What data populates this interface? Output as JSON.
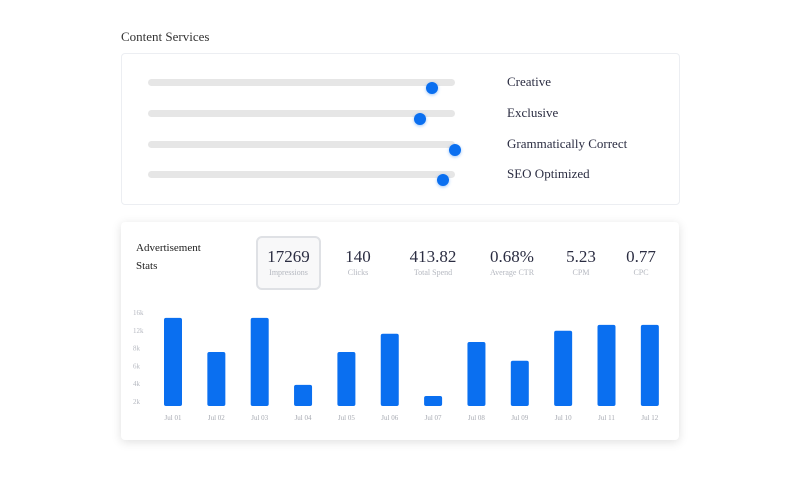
{
  "content_services": {
    "title": "Content Services",
    "sliders": [
      {
        "label": "Creative",
        "value": 0.925
      },
      {
        "label": "Exclusive",
        "value": 0.886
      },
      {
        "label": "Grammatically Correct",
        "value": 1.0
      },
      {
        "label": "SEO Optimized",
        "value": 0.96
      }
    ]
  },
  "ad_stats": {
    "title": "Advertisement Stats",
    "stats": [
      {
        "value": "17269",
        "label": "Impressions",
        "active": true
      },
      {
        "value": "140",
        "label": "Clicks"
      },
      {
        "value": "413.82",
        "label": "Total Spend"
      },
      {
        "value": "0.68%",
        "label": "Average CTR"
      },
      {
        "value": "5.23",
        "label": "CPM"
      },
      {
        "value": "0.77",
        "label": "CPC"
      }
    ]
  },
  "colors": {
    "accent": "#0a6ff0",
    "track": "#e6e6e6"
  },
  "chart_data": {
    "type": "bar",
    "title": "",
    "xlabel": "",
    "ylabel": "",
    "categories": [
      "Jul 01",
      "Jul 02",
      "Jul 03",
      "Jul 04",
      "Jul 05",
      "Jul 06",
      "Jul 07",
      "Jul 08",
      "Jul 09",
      "Jul 10",
      "Jul 11",
      "Jul 12"
    ],
    "values": [
      15000,
      9200,
      15000,
      3600,
      9200,
      12300,
      1700,
      10900,
      7700,
      12800,
      13800,
      13800
    ],
    "ytick_labels": [
      "16k",
      "12k",
      "8k",
      "6k",
      "4k",
      "2k"
    ],
    "ylim": [
      0,
      16000
    ],
    "grid": false
  }
}
